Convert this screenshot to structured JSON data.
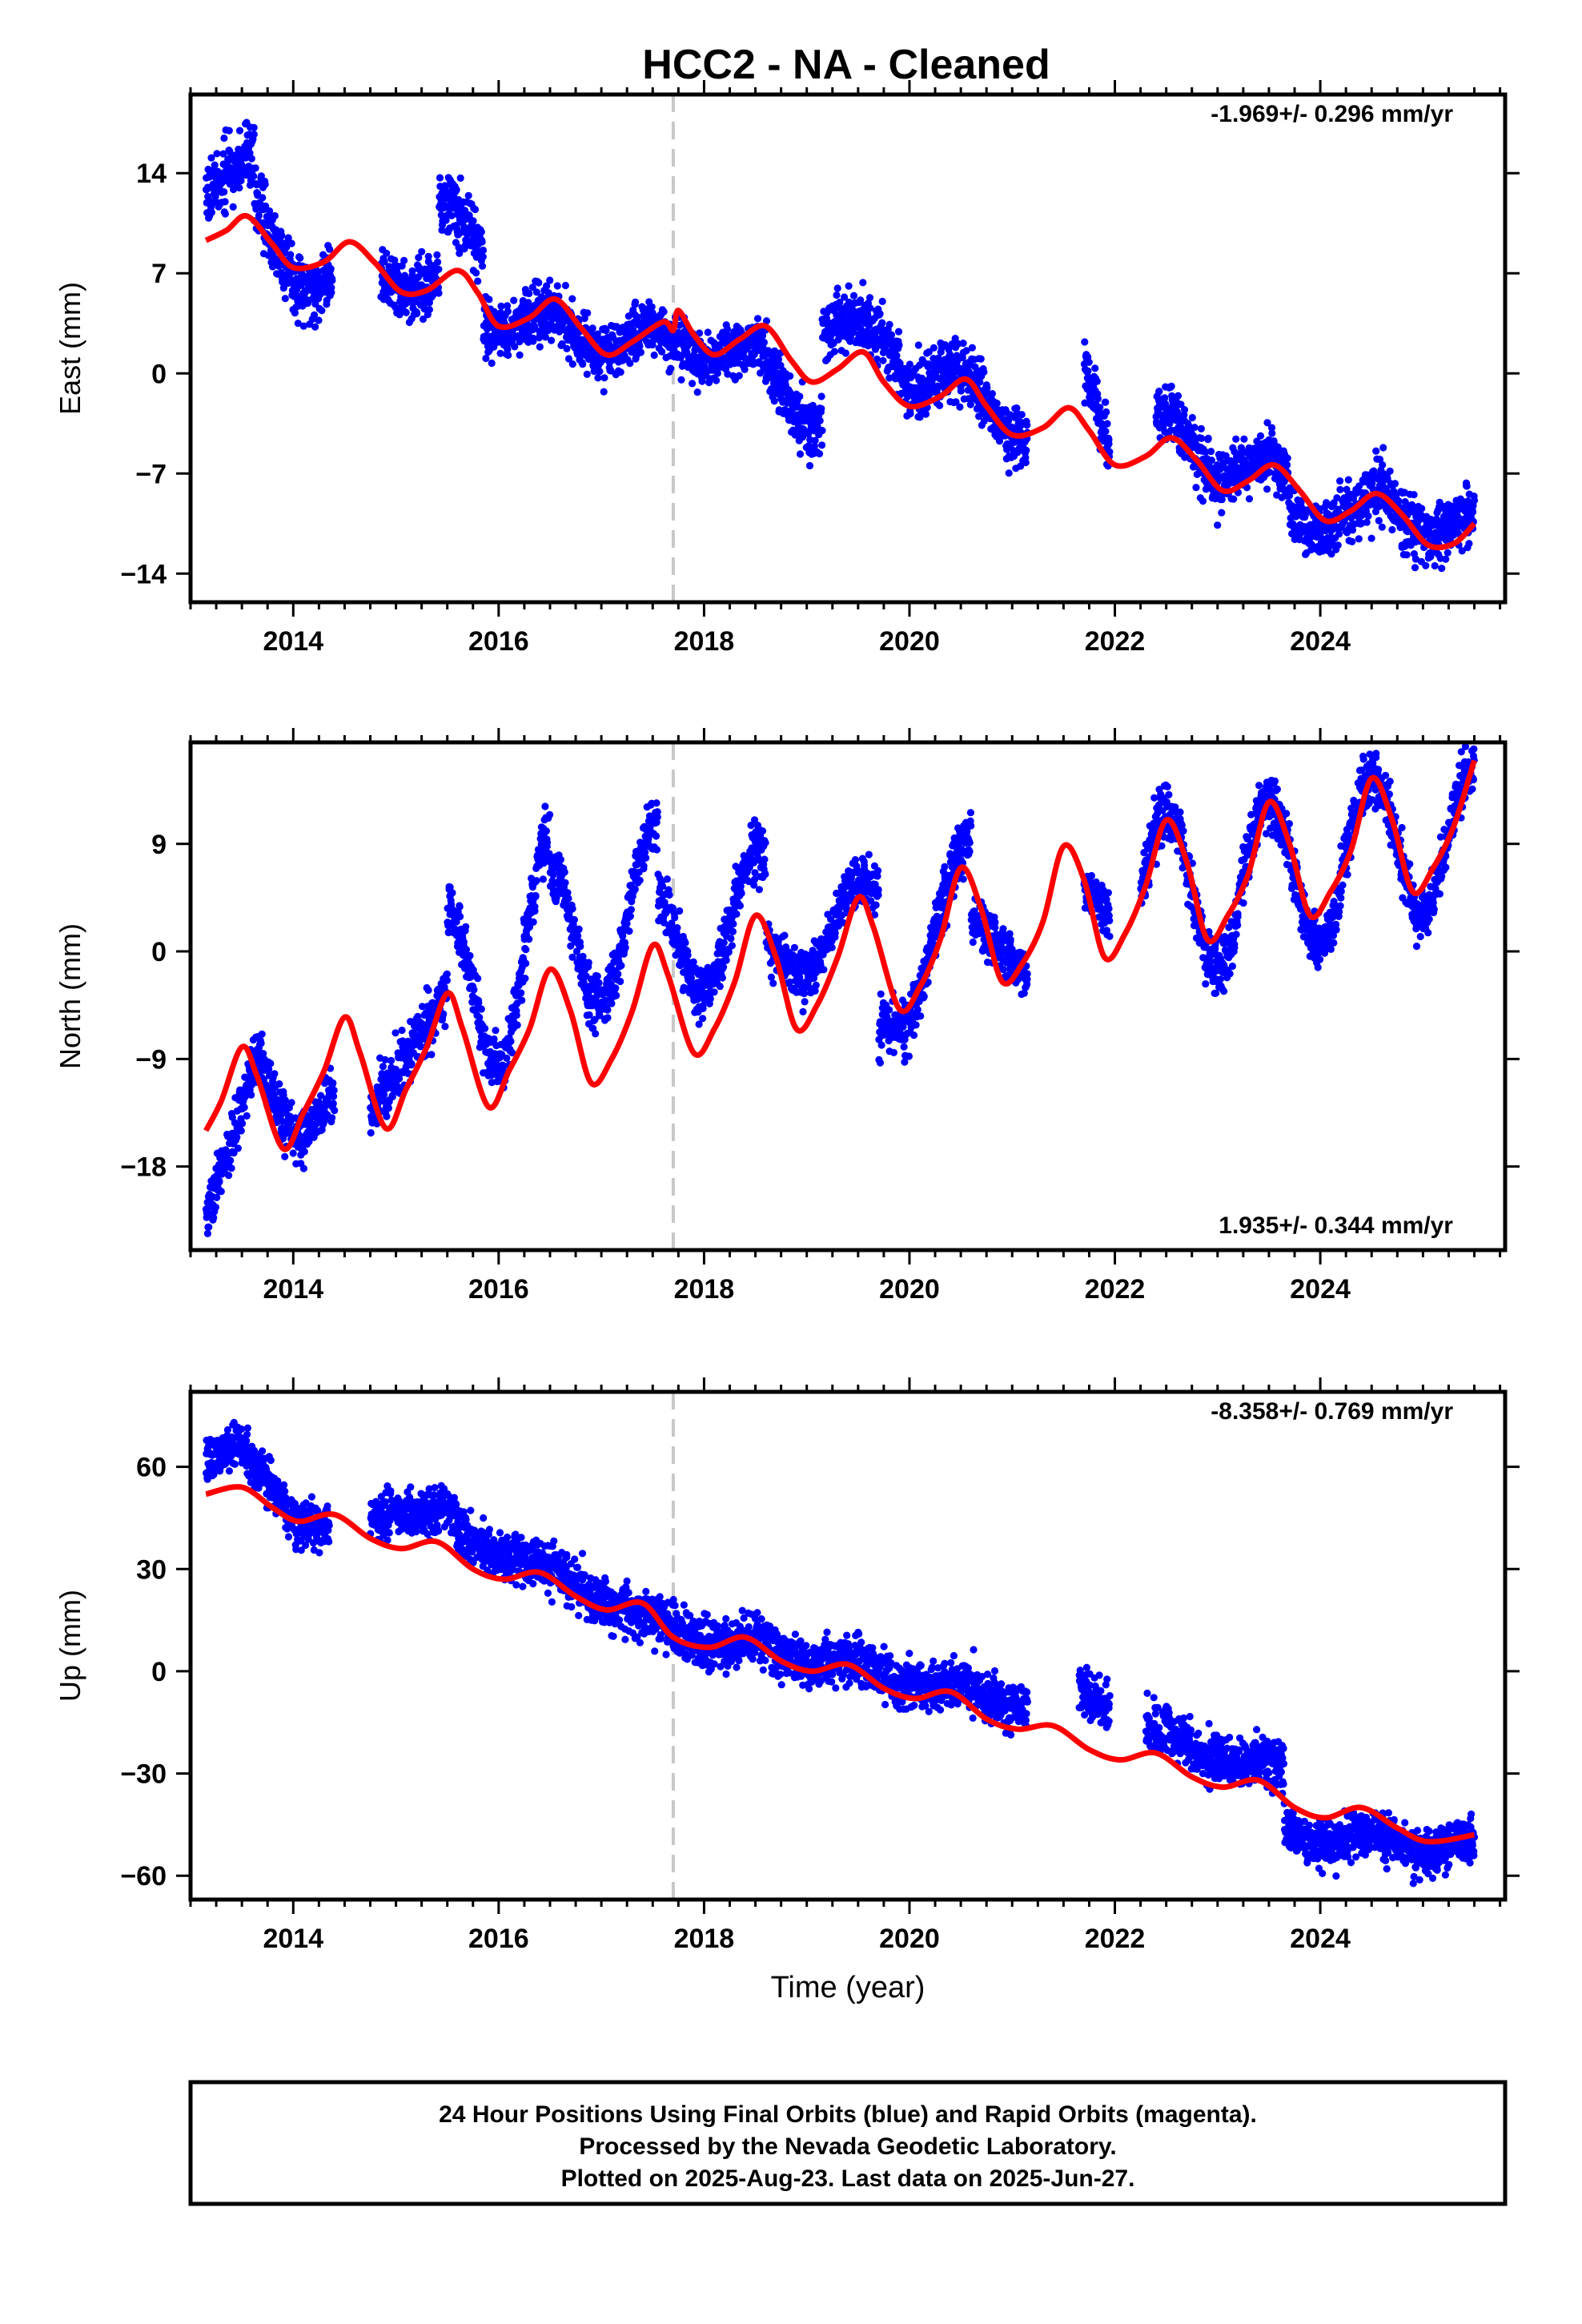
{
  "title": "HCC2  - NA - Cleaned",
  "colors": {
    "final_orbits": "#0000ff",
    "model_fit": "#ff0000",
    "event_line": "#c8c8c8",
    "frame": "#000000"
  },
  "footer": [
    "24 Hour Positions Using Final Orbits (blue) and Rapid Orbits (magenta).",
    "Processed by the Nevada Geodetic Laboratory.",
    "Plotted on 2025-Aug-23. Last data on 2025-Jun-27."
  ],
  "chart_data": [
    {
      "type": "scatter",
      "component": "east",
      "ylabel": "East (mm)",
      "xlabel": "",
      "rate_label": "-1.969+/- 0.296 mm/yr",
      "rate_position": "top-right",
      "xlim": [
        2013.0,
        2025.8
      ],
      "ylim": [
        -16.0,
        19.5
      ],
      "xticks": [
        2014,
        2016,
        2018,
        2020,
        2022,
        2024
      ],
      "yticks": [
        -14,
        -7,
        0,
        7,
        14
      ],
      "ytick_labels": [
        "−14",
        "−7",
        "0",
        "7",
        "14"
      ],
      "event_line_x": 2017.7,
      "model": {
        "x": [
          2013.15,
          2013.35,
          2013.55,
          2013.8,
          2014.0,
          2014.3,
          2014.55,
          2014.8,
          2015.05,
          2015.3,
          2015.6,
          2015.8,
          2016.0,
          2016.3,
          2016.55,
          2016.8,
          2017.05,
          2017.3,
          2017.6,
          2017.7,
          2017.75,
          2017.9,
          2018.1,
          2018.35,
          2018.6,
          2018.85,
          2019.05,
          2019.3,
          2019.55,
          2019.75,
          2020.0,
          2020.3,
          2020.55,
          2020.75,
          2021.0,
          2021.3,
          2021.55,
          2021.75,
          2022.0,
          2022.3,
          2022.55,
          2022.8,
          2023.05,
          2023.3,
          2023.55,
          2023.8,
          2024.05,
          2024.3,
          2024.55,
          2024.8,
          2025.05,
          2025.3,
          2025.5
        ],
        "y": [
          9.3,
          10.0,
          11.0,
          9.0,
          7.4,
          7.8,
          9.2,
          7.7,
          5.7,
          5.8,
          7.2,
          5.6,
          3.3,
          3.9,
          5.2,
          3.2,
          1.3,
          2.2,
          3.6,
          3.0,
          4.4,
          2.7,
          1.3,
          2.4,
          3.3,
          0.9,
          -0.6,
          0.3,
          1.5,
          -0.6,
          -2.3,
          -1.6,
          -0.4,
          -2.3,
          -4.3,
          -3.8,
          -2.4,
          -4.0,
          -6.4,
          -5.8,
          -4.5,
          -6.1,
          -8.2,
          -7.5,
          -6.4,
          -8.2,
          -10.3,
          -9.6,
          -8.4,
          -9.9,
          -12.0,
          -11.9,
          -10.5
        ]
      },
      "observations": [
        {
          "start": 2013.15,
          "end": 2013.62,
          "trend": [
            12.5,
            15.5
          ],
          "amp": 0.0,
          "noise": 1.6
        },
        {
          "start": 2013.62,
          "end": 2014.38,
          "trend": [
            11.5,
            5.0
          ],
          "amp": 1.6,
          "noise": 1.6
        },
        {
          "start": 2014.85,
          "end": 2015.42,
          "trend": [
            7.5,
            5.5
          ],
          "amp": 1.0,
          "noise": 1.4
        },
        {
          "start": 2015.42,
          "end": 2015.85,
          "trend": [
            10.0,
            9.5
          ],
          "amp": 1.8,
          "noise": 1.5
        },
        {
          "start": 2015.85,
          "end": 2016.6,
          "trend": [
            4.0,
            3.2
          ],
          "amp": 1.0,
          "noise": 1.4
        },
        {
          "start": 2016.6,
          "end": 2017.7,
          "trend": [
            3.2,
            1.8
          ],
          "amp": 1.3,
          "noise": 1.4
        },
        {
          "start": 2017.7,
          "end": 2018.6,
          "trend": [
            2.5,
            1.0
          ],
          "amp": 1.0,
          "noise": 1.3
        },
        {
          "start": 2018.6,
          "end": 2019.15,
          "trend": [
            0.0,
            -3.2
          ],
          "amp": 1.3,
          "noise": 1.5
        },
        {
          "start": 2019.15,
          "end": 2019.9,
          "trend": [
            3.5,
            2.0
          ],
          "amp": 1.0,
          "noise": 1.5
        },
        {
          "start": 2019.9,
          "end": 2021.15,
          "trend": [
            1.0,
            -3.5
          ],
          "amp": 1.5,
          "noise": 1.5
        },
        {
          "start": 2021.7,
          "end": 2021.95,
          "trend": [
            0.5,
            -5.0
          ],
          "amp": 0.0,
          "noise": 1.5
        },
        {
          "start": 2022.4,
          "end": 2023.7,
          "trend": [
            -4.0,
            -8.2
          ],
          "amp": 1.6,
          "noise": 1.4
        },
        {
          "start": 2023.7,
          "end": 2024.5,
          "trend": [
            -10.0,
            -9.8
          ],
          "amp": 1.0,
          "noise": 1.4
        },
        {
          "start": 2024.5,
          "end": 2025.5,
          "trend": [
            -9.0,
            -11.2
          ],
          "amp": 1.2,
          "noise": 1.5
        }
      ]
    },
    {
      "type": "scatter",
      "component": "north",
      "ylabel": "North (mm)",
      "xlabel": "",
      "rate_label": "1.935+/- 0.344 mm/yr",
      "rate_position": "bottom-right",
      "xlim": [
        2013.0,
        2025.8
      ],
      "ylim": [
        -25.0,
        17.5
      ],
      "xticks": [
        2014,
        2016,
        2018,
        2020,
        2022,
        2024
      ],
      "yticks": [
        -18,
        -9,
        0,
        9
      ],
      "ytick_labels": [
        "−18",
        "−9",
        "0",
        "9"
      ],
      "event_line_x": 2017.7,
      "model": {
        "x": [
          2013.15,
          2013.3,
          2013.5,
          2013.65,
          2013.9,
          2014.1,
          2014.3,
          2014.5,
          2014.65,
          2014.9,
          2015.1,
          2015.3,
          2015.5,
          2015.65,
          2015.9,
          2016.1,
          2016.3,
          2016.5,
          2016.7,
          2016.9,
          2017.1,
          2017.3,
          2017.5,
          2017.65,
          2017.9,
          2018.1,
          2018.3,
          2018.5,
          2018.7,
          2018.9,
          2019.1,
          2019.3,
          2019.5,
          2019.65,
          2019.9,
          2020.1,
          2020.3,
          2020.5,
          2020.7,
          2020.9,
          2021.1,
          2021.3,
          2021.5,
          2021.7,
          2021.9,
          2022.1,
          2022.3,
          2022.5,
          2022.7,
          2022.9,
          2023.1,
          2023.3,
          2023.5,
          2023.7,
          2023.9,
          2024.1,
          2024.3,
          2024.5,
          2024.7,
          2024.9,
          2025.1,
          2025.3,
          2025.5
        ],
        "y": [
          -15.0,
          -12.5,
          -8.0,
          -10.5,
          -16.5,
          -13.5,
          -10.0,
          -5.5,
          -8.5,
          -14.8,
          -11.5,
          -8.0,
          -3.5,
          -6.5,
          -13.0,
          -10.0,
          -6.5,
          -1.5,
          -5.0,
          -11.0,
          -9.0,
          -5.0,
          0.5,
          -2.0,
          -8.5,
          -6.5,
          -2.5,
          3.0,
          -0.5,
          -6.5,
          -4.5,
          -0.5,
          4.5,
          2.0,
          -4.8,
          -3.0,
          1.0,
          7.0,
          3.5,
          -2.5,
          -1.0,
          2.5,
          8.8,
          6.0,
          -0.5,
          1.5,
          5.5,
          11.0,
          7.5,
          1.0,
          3.0,
          6.5,
          12.5,
          9.0,
          3.0,
          5.0,
          8.5,
          14.5,
          11.0,
          5.0,
          7.0,
          10.5,
          16.0
        ]
      },
      "observations": [
        {
          "start": 2013.15,
          "end": 2013.65,
          "trend": [
            -22.5,
            -9.0
          ],
          "amp": 0.0,
          "noise": 1.6
        },
        {
          "start": 2013.65,
          "end": 2014.4,
          "trend": [
            -10.0,
            -14.5
          ],
          "amp": 3.0,
          "noise": 1.6
        },
        {
          "start": 2014.75,
          "end": 2015.5,
          "trend": [
            -13.5,
            -3.5
          ],
          "amp": 0.0,
          "noise": 1.7
        },
        {
          "start": 2015.5,
          "end": 2016.5,
          "trend": [
            -5.0,
            2.0
          ],
          "amp": 8.0,
          "noise": 1.7
        },
        {
          "start": 2016.5,
          "end": 2017.55,
          "trend": [
            0.0,
            4.0
          ],
          "amp": 6.5,
          "noise": 1.6
        },
        {
          "start": 2017.55,
          "end": 2018.6,
          "trend": [
            0.0,
            3.5
          ],
          "amp": 5.0,
          "noise": 1.6
        },
        {
          "start": 2018.6,
          "end": 2019.7,
          "trend": [
            -1.5,
            4.5
          ],
          "amp": 2.5,
          "noise": 1.5
        },
        {
          "start": 2019.7,
          "end": 2020.6,
          "trend": [
            -7.0,
            7.0
          ],
          "amp": 3.0,
          "noise": 1.7
        },
        {
          "start": 2020.6,
          "end": 2021.15,
          "trend": [
            3.0,
            -2.5
          ],
          "amp": 0.0,
          "noise": 1.5
        },
        {
          "start": 2021.7,
          "end": 2021.95,
          "trend": [
            5.5,
            3.0
          ],
          "amp": 0.0,
          "noise": 1.4
        },
        {
          "start": 2022.25,
          "end": 2023.2,
          "trend": [
            5.0,
            5.0
          ],
          "amp": 6.5,
          "noise": 1.6
        },
        {
          "start": 2023.2,
          "end": 2024.2,
          "trend": [
            6.5,
            6.5
          ],
          "amp": 6.0,
          "noise": 1.6
        },
        {
          "start": 2024.2,
          "end": 2025.5,
          "trend": [
            8.0,
            10.0
          ],
          "amp": 6.0,
          "noise": 1.6
        }
      ]
    },
    {
      "type": "scatter",
      "component": "up",
      "ylabel": "Up (mm)",
      "xlabel": "Time (year)",
      "rate_label": "-8.358+/- 0.769 mm/yr",
      "rate_position": "top-right",
      "xlim": [
        2013.0,
        2025.8
      ],
      "ylim": [
        -67.0,
        82.0
      ],
      "xticks": [
        2014,
        2016,
        2018,
        2020,
        2022,
        2024
      ],
      "yticks": [
        -60,
        -30,
        0,
        30,
        60
      ],
      "ytick_labels": [
        "−60",
        "−30",
        "0",
        "30",
        "60"
      ],
      "event_line_x": 2017.7,
      "model": {
        "x": [
          2013.15,
          2013.5,
          2013.8,
          2014.05,
          2014.4,
          2014.75,
          2015.05,
          2015.4,
          2015.75,
          2016.05,
          2016.4,
          2016.75,
          2017.05,
          2017.4,
          2017.7,
          2018.05,
          2018.4,
          2018.75,
          2019.05,
          2019.4,
          2019.75,
          2020.05,
          2020.4,
          2020.75,
          2021.05,
          2021.4,
          2021.75,
          2022.05,
          2022.4,
          2022.75,
          2023.05,
          2023.4,
          2023.75,
          2024.05,
          2024.4,
          2024.75,
          2025.05,
          2025.5
        ],
        "y": [
          52,
          54,
          48,
          44,
          46,
          39,
          36,
          38,
          30,
          27,
          29,
          22,
          18,
          20,
          10,
          7,
          10,
          3,
          0,
          2,
          -5,
          -8,
          -6,
          -14,
          -17,
          -16,
          -23,
          -26,
          -24,
          -31,
          -34,
          -32,
          -40,
          -43,
          -40,
          -46,
          -50,
          -48
        ]
      },
      "observations": [
        {
          "start": 2013.15,
          "end": 2013.55,
          "trend": [
            62,
            68
          ],
          "amp": 0.0,
          "noise": 4.5
        },
        {
          "start": 2013.55,
          "end": 2014.35,
          "trend": [
            60,
            40
          ],
          "amp": 4.0,
          "noise": 5.0
        },
        {
          "start": 2014.75,
          "end": 2015.55,
          "trend": [
            45,
            48
          ],
          "amp": 0.0,
          "noise": 4.5
        },
        {
          "start": 2015.55,
          "end": 2017.7,
          "trend": [
            42,
            12
          ],
          "amp": 2.0,
          "noise": 5.0
        },
        {
          "start": 2017.7,
          "end": 2019.6,
          "trend": [
            12,
            0
          ],
          "amp": 2.0,
          "noise": 5.0
        },
        {
          "start": 2019.6,
          "end": 2021.15,
          "trend": [
            0,
            -10
          ],
          "amp": 2.0,
          "noise": 5.0
        },
        {
          "start": 2021.65,
          "end": 2021.95,
          "trend": [
            -5,
            -12
          ],
          "amp": 0.0,
          "noise": 5.0
        },
        {
          "start": 2022.3,
          "end": 2023.65,
          "trend": [
            -18,
            -30
          ],
          "amp": 2.0,
          "noise": 5.0
        },
        {
          "start": 2023.65,
          "end": 2025.5,
          "trend": [
            -48,
            -52
          ],
          "amp": 2.0,
          "noise": 4.5
        }
      ]
    }
  ]
}
